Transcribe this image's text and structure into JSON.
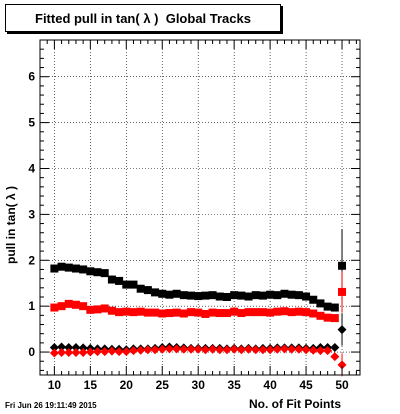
{
  "title": "Fitted pull in tan( λ )  Global Tracks",
  "footer": "Fri Jun 26 19:11:49 2015",
  "chart_data": {
    "type": "scatter",
    "title": "Fitted pull in tan( λ )  Global Tracks",
    "xlabel": "No. of Fit Points",
    "ylabel": "pull in tan( λ )",
    "xlim": [
      8,
      52.5
    ],
    "ylim": [
      -0.5,
      6.8
    ],
    "grid": true,
    "x_ticks": [
      10,
      15,
      20,
      25,
      30,
      35,
      40,
      45,
      50
    ],
    "y_ticks": [
      0,
      1,
      2,
      3,
      4,
      5,
      6
    ],
    "x": [
      10,
      11,
      12,
      13,
      14,
      15,
      16,
      17,
      18,
      19,
      20,
      21,
      22,
      23,
      24,
      25,
      26,
      27,
      28,
      29,
      30,
      31,
      32,
      33,
      34,
      35,
      36,
      37,
      38,
      39,
      40,
      41,
      42,
      43,
      44,
      45,
      46,
      47,
      48,
      49,
      50
    ],
    "series": [
      {
        "marker": "square",
        "color": "#000000",
        "values": [
          1.82,
          1.86,
          1.84,
          1.82,
          1.8,
          1.76,
          1.74,
          1.72,
          1.58,
          1.55,
          1.47,
          1.47,
          1.38,
          1.35,
          1.3,
          1.27,
          1.25,
          1.27,
          1.24,
          1.23,
          1.22,
          1.23,
          1.24,
          1.21,
          1.2,
          1.24,
          1.23,
          1.21,
          1.24,
          1.23,
          1.25,
          1.24,
          1.27,
          1.25,
          1.24,
          1.21,
          1.14,
          1.06,
          0.99,
          0.97,
          1.88
        ],
        "errors": [
          0.04,
          0.04,
          0.04,
          0.04,
          0.04,
          0.04,
          0.04,
          0.04,
          0.04,
          0.04,
          0.04,
          0.04,
          0.04,
          0.04,
          0.04,
          0.04,
          0.04,
          0.04,
          0.04,
          0.04,
          0.04,
          0.04,
          0.04,
          0.04,
          0.04,
          0.04,
          0.04,
          0.04,
          0.04,
          0.04,
          0.04,
          0.04,
          0.04,
          0.04,
          0.04,
          0.04,
          0.04,
          0.04,
          0.05,
          0.06,
          0.8
        ]
      },
      {
        "marker": "square",
        "color": "#ff0000",
        "values": [
          0.97,
          1.0,
          1.05,
          1.03,
          1.0,
          0.92,
          0.93,
          0.95,
          0.9,
          0.87,
          0.88,
          0.87,
          0.88,
          0.86,
          0.86,
          0.84,
          0.85,
          0.86,
          0.84,
          0.87,
          0.86,
          0.83,
          0.86,
          0.85,
          0.85,
          0.88,
          0.85,
          0.87,
          0.87,
          0.87,
          0.86,
          0.88,
          0.89,
          0.87,
          0.88,
          0.87,
          0.84,
          0.79,
          0.75,
          0.74,
          1.31
        ],
        "errors": [
          0.03,
          0.03,
          0.03,
          0.03,
          0.03,
          0.03,
          0.03,
          0.03,
          0.03,
          0.03,
          0.03,
          0.03,
          0.03,
          0.03,
          0.03,
          0.03,
          0.03,
          0.03,
          0.03,
          0.03,
          0.03,
          0.03,
          0.03,
          0.03,
          0.03,
          0.03,
          0.03,
          0.03,
          0.03,
          0.03,
          0.03,
          0.03,
          0.03,
          0.03,
          0.03,
          0.03,
          0.03,
          0.03,
          0.04,
          0.05,
          0.45
        ]
      },
      {
        "marker": "diamond",
        "color": "#000000",
        "values": [
          0.1,
          0.11,
          0.1,
          0.1,
          0.09,
          0.08,
          0.07,
          0.07,
          0.06,
          0.06,
          0.05,
          0.07,
          0.07,
          0.07,
          0.08,
          0.1,
          0.11,
          0.1,
          0.09,
          0.08,
          0.08,
          0.08,
          0.08,
          0.08,
          0.07,
          0.08,
          0.07,
          0.08,
          0.07,
          0.08,
          0.08,
          0.09,
          0.09,
          0.09,
          0.09,
          0.08,
          0.08,
          0.1,
          0.1,
          0.1,
          0.49
        ],
        "errors": [
          0.02,
          0.02,
          0.02,
          0.02,
          0.02,
          0.02,
          0.02,
          0.02,
          0.02,
          0.02,
          0.02,
          0.02,
          0.02,
          0.02,
          0.02,
          0.02,
          0.02,
          0.02,
          0.02,
          0.02,
          0.02,
          0.02,
          0.02,
          0.02,
          0.02,
          0.02,
          0.02,
          0.02,
          0.02,
          0.02,
          0.02,
          0.02,
          0.02,
          0.02,
          0.02,
          0.02,
          0.02,
          0.02,
          0.03,
          0.04,
          0.35
        ]
      },
      {
        "marker": "diamond",
        "color": "#ff0000",
        "values": [
          -0.02,
          -0.01,
          -0.01,
          -0.01,
          -0.01,
          0.0,
          0.01,
          0.01,
          0.02,
          0.01,
          0.01,
          0.03,
          0.04,
          0.05,
          0.05,
          0.06,
          0.07,
          0.07,
          0.06,
          0.06,
          0.06,
          0.05,
          0.06,
          0.05,
          0.05,
          0.06,
          0.05,
          0.06,
          0.05,
          0.05,
          0.05,
          0.06,
          0.07,
          0.06,
          0.06,
          0.05,
          0.04,
          0.03,
          0.03,
          -0.1,
          -0.28
        ],
        "errors": [
          0.02,
          0.02,
          0.02,
          0.02,
          0.02,
          0.02,
          0.02,
          0.02,
          0.02,
          0.02,
          0.02,
          0.02,
          0.02,
          0.02,
          0.02,
          0.02,
          0.02,
          0.02,
          0.02,
          0.02,
          0.02,
          0.02,
          0.02,
          0.02,
          0.02,
          0.02,
          0.02,
          0.02,
          0.02,
          0.02,
          0.02,
          0.02,
          0.02,
          0.02,
          0.02,
          0.02,
          0.02,
          0.02,
          0.03,
          0.04,
          0.25
        ]
      }
    ]
  }
}
